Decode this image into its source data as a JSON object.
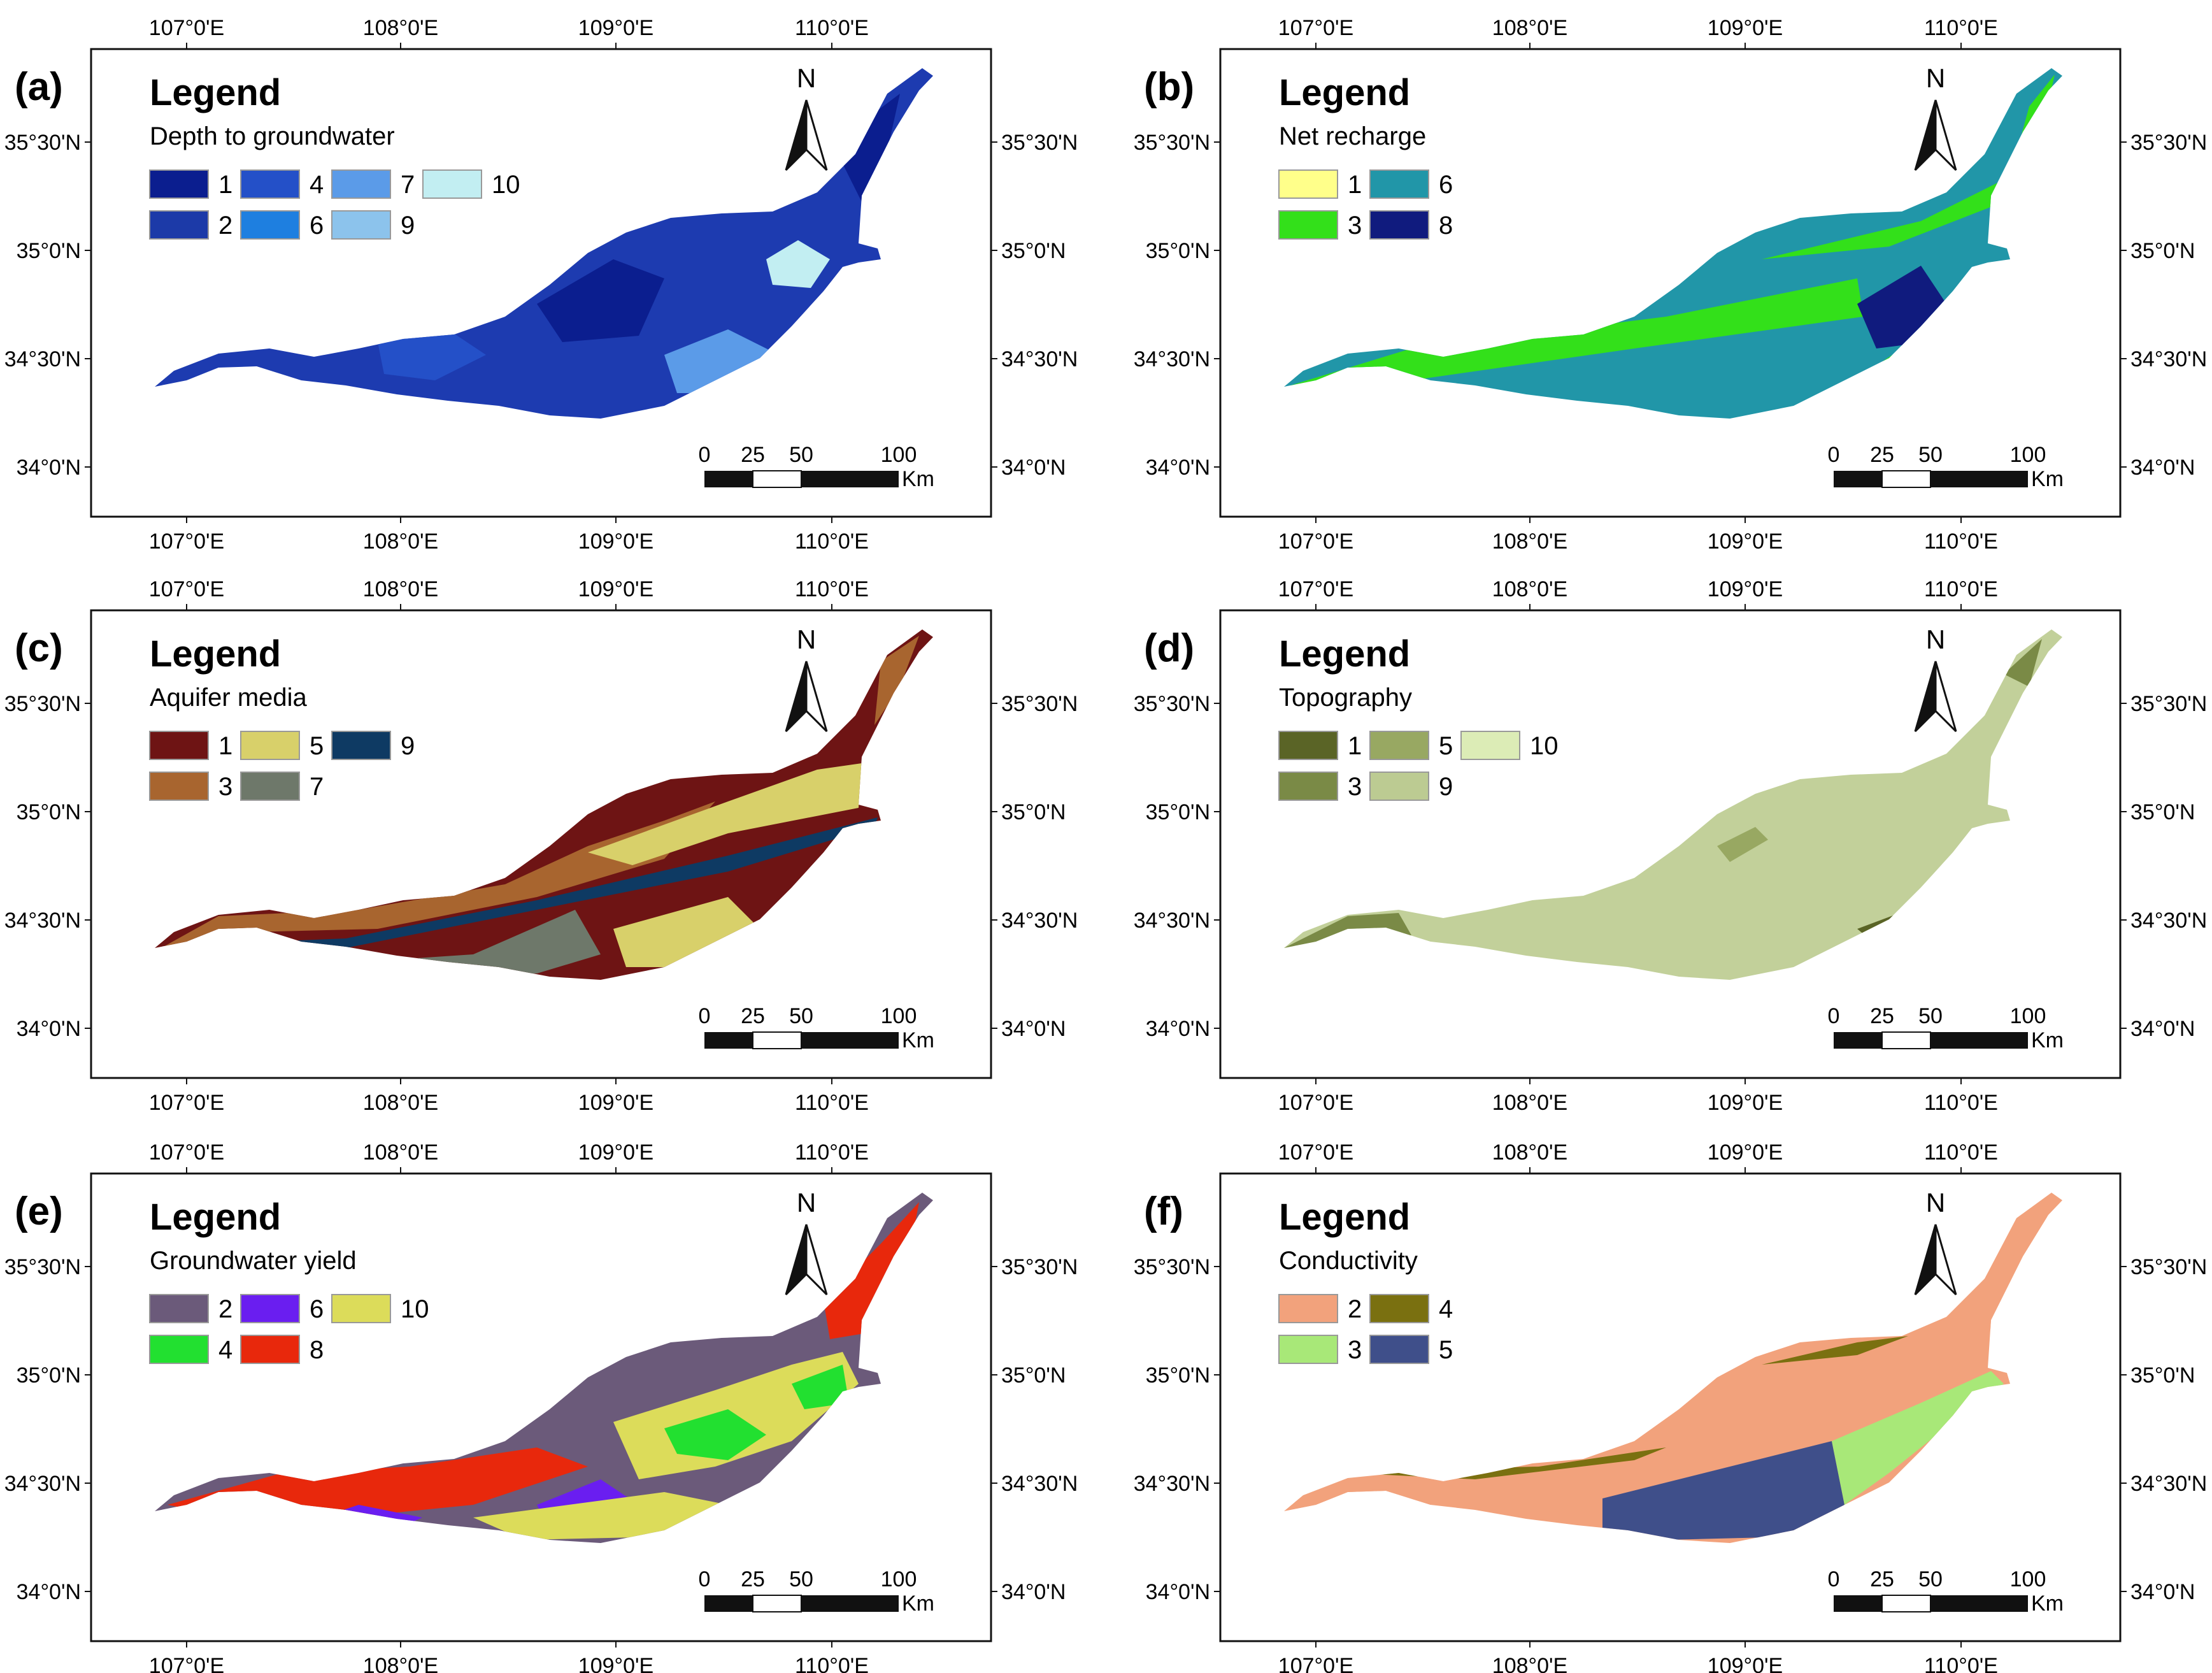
{
  "lon_ticks": [
    "107°0'E",
    "108°0'E",
    "109°0'E",
    "110°0'E"
  ],
  "lat_ticks": [
    "35°30'N",
    "35°0'N",
    "34°30'N",
    "34°0'N"
  ],
  "north_label": "N",
  "scalebar": {
    "labels": [
      "0",
      "25",
      "50",
      "100"
    ],
    "unit": "Km"
  },
  "legend_heading": "Legend",
  "panels": [
    {
      "tag": "(a)",
      "subtitle": "Depth to groundwater",
      "base_color": "#1d3bb0",
      "legend_rows": [
        [
          {
            "label": "1",
            "color": "#0b1e8f"
          },
          {
            "label": "4",
            "color": "#2450c8"
          },
          {
            "label": "7",
            "color": "#5b9be8"
          },
          {
            "label": "10",
            "color": "#c2eef2"
          }
        ],
        [
          {
            "label": "2",
            "color": "#1c3aa8"
          },
          {
            "label": "6",
            "color": "#1e7fe0"
          },
          {
            "label": "9",
            "color": "#8cc3ec"
          }
        ]
      ]
    },
    {
      "tag": "(b)",
      "subtitle": "Net recharge",
      "base_color": "#2196a8",
      "legend_rows": [
        [
          {
            "label": "1",
            "color": "#ffff8a"
          },
          {
            "label": "6",
            "color": "#2196a8"
          }
        ],
        [
          {
            "label": "3",
            "color": "#33e01a"
          },
          {
            "label": "8",
            "color": "#101b7e"
          }
        ]
      ]
    },
    {
      "tag": "(c)",
      "subtitle": "Aquifer media",
      "base_color": "#6e1414",
      "legend_rows": [
        [
          {
            "label": "1",
            "color": "#6e1414"
          },
          {
            "label": "5",
            "color": "#d8d06a"
          },
          {
            "label": "9",
            "color": "#0e3a63"
          }
        ],
        [
          {
            "label": "3",
            "color": "#a8652f"
          },
          {
            "label": "7",
            "color": "#6e786a"
          }
        ]
      ]
    },
    {
      "tag": "(d)",
      "subtitle": "Topography",
      "base_color": "#c2d09a",
      "legend_rows": [
        [
          {
            "label": "1",
            "color": "#5a6426"
          },
          {
            "label": "5",
            "color": "#98a862"
          },
          {
            "label": "10",
            "color": "#dcecb6"
          }
        ],
        [
          {
            "label": "3",
            "color": "#7a8a46"
          },
          {
            "label": "9",
            "color": "#bccb92"
          }
        ]
      ]
    },
    {
      "tag": "(e)",
      "subtitle": "Groundwater yield",
      "base_color": "#6b5a7a",
      "legend_rows": [
        [
          {
            "label": "2",
            "color": "#6b5a7a"
          },
          {
            "label": "6",
            "color": "#6a1ef0"
          },
          {
            "label": "10",
            "color": "#dcdc5a"
          }
        ],
        [
          {
            "label": "4",
            "color": "#22e030"
          },
          {
            "label": "8",
            "color": "#e8280c"
          }
        ]
      ]
    },
    {
      "tag": "(f)",
      "subtitle": "Conductivity",
      "base_color": "#f2a27c",
      "legend_rows": [
        [
          {
            "label": "2",
            "color": "#f2a27c"
          },
          {
            "label": "4",
            "color": "#7a7010"
          }
        ],
        [
          {
            "label": "3",
            "color": "#a8e878"
          },
          {
            "label": "5",
            "color": "#3f4f8a"
          }
        ]
      ]
    }
  ]
}
